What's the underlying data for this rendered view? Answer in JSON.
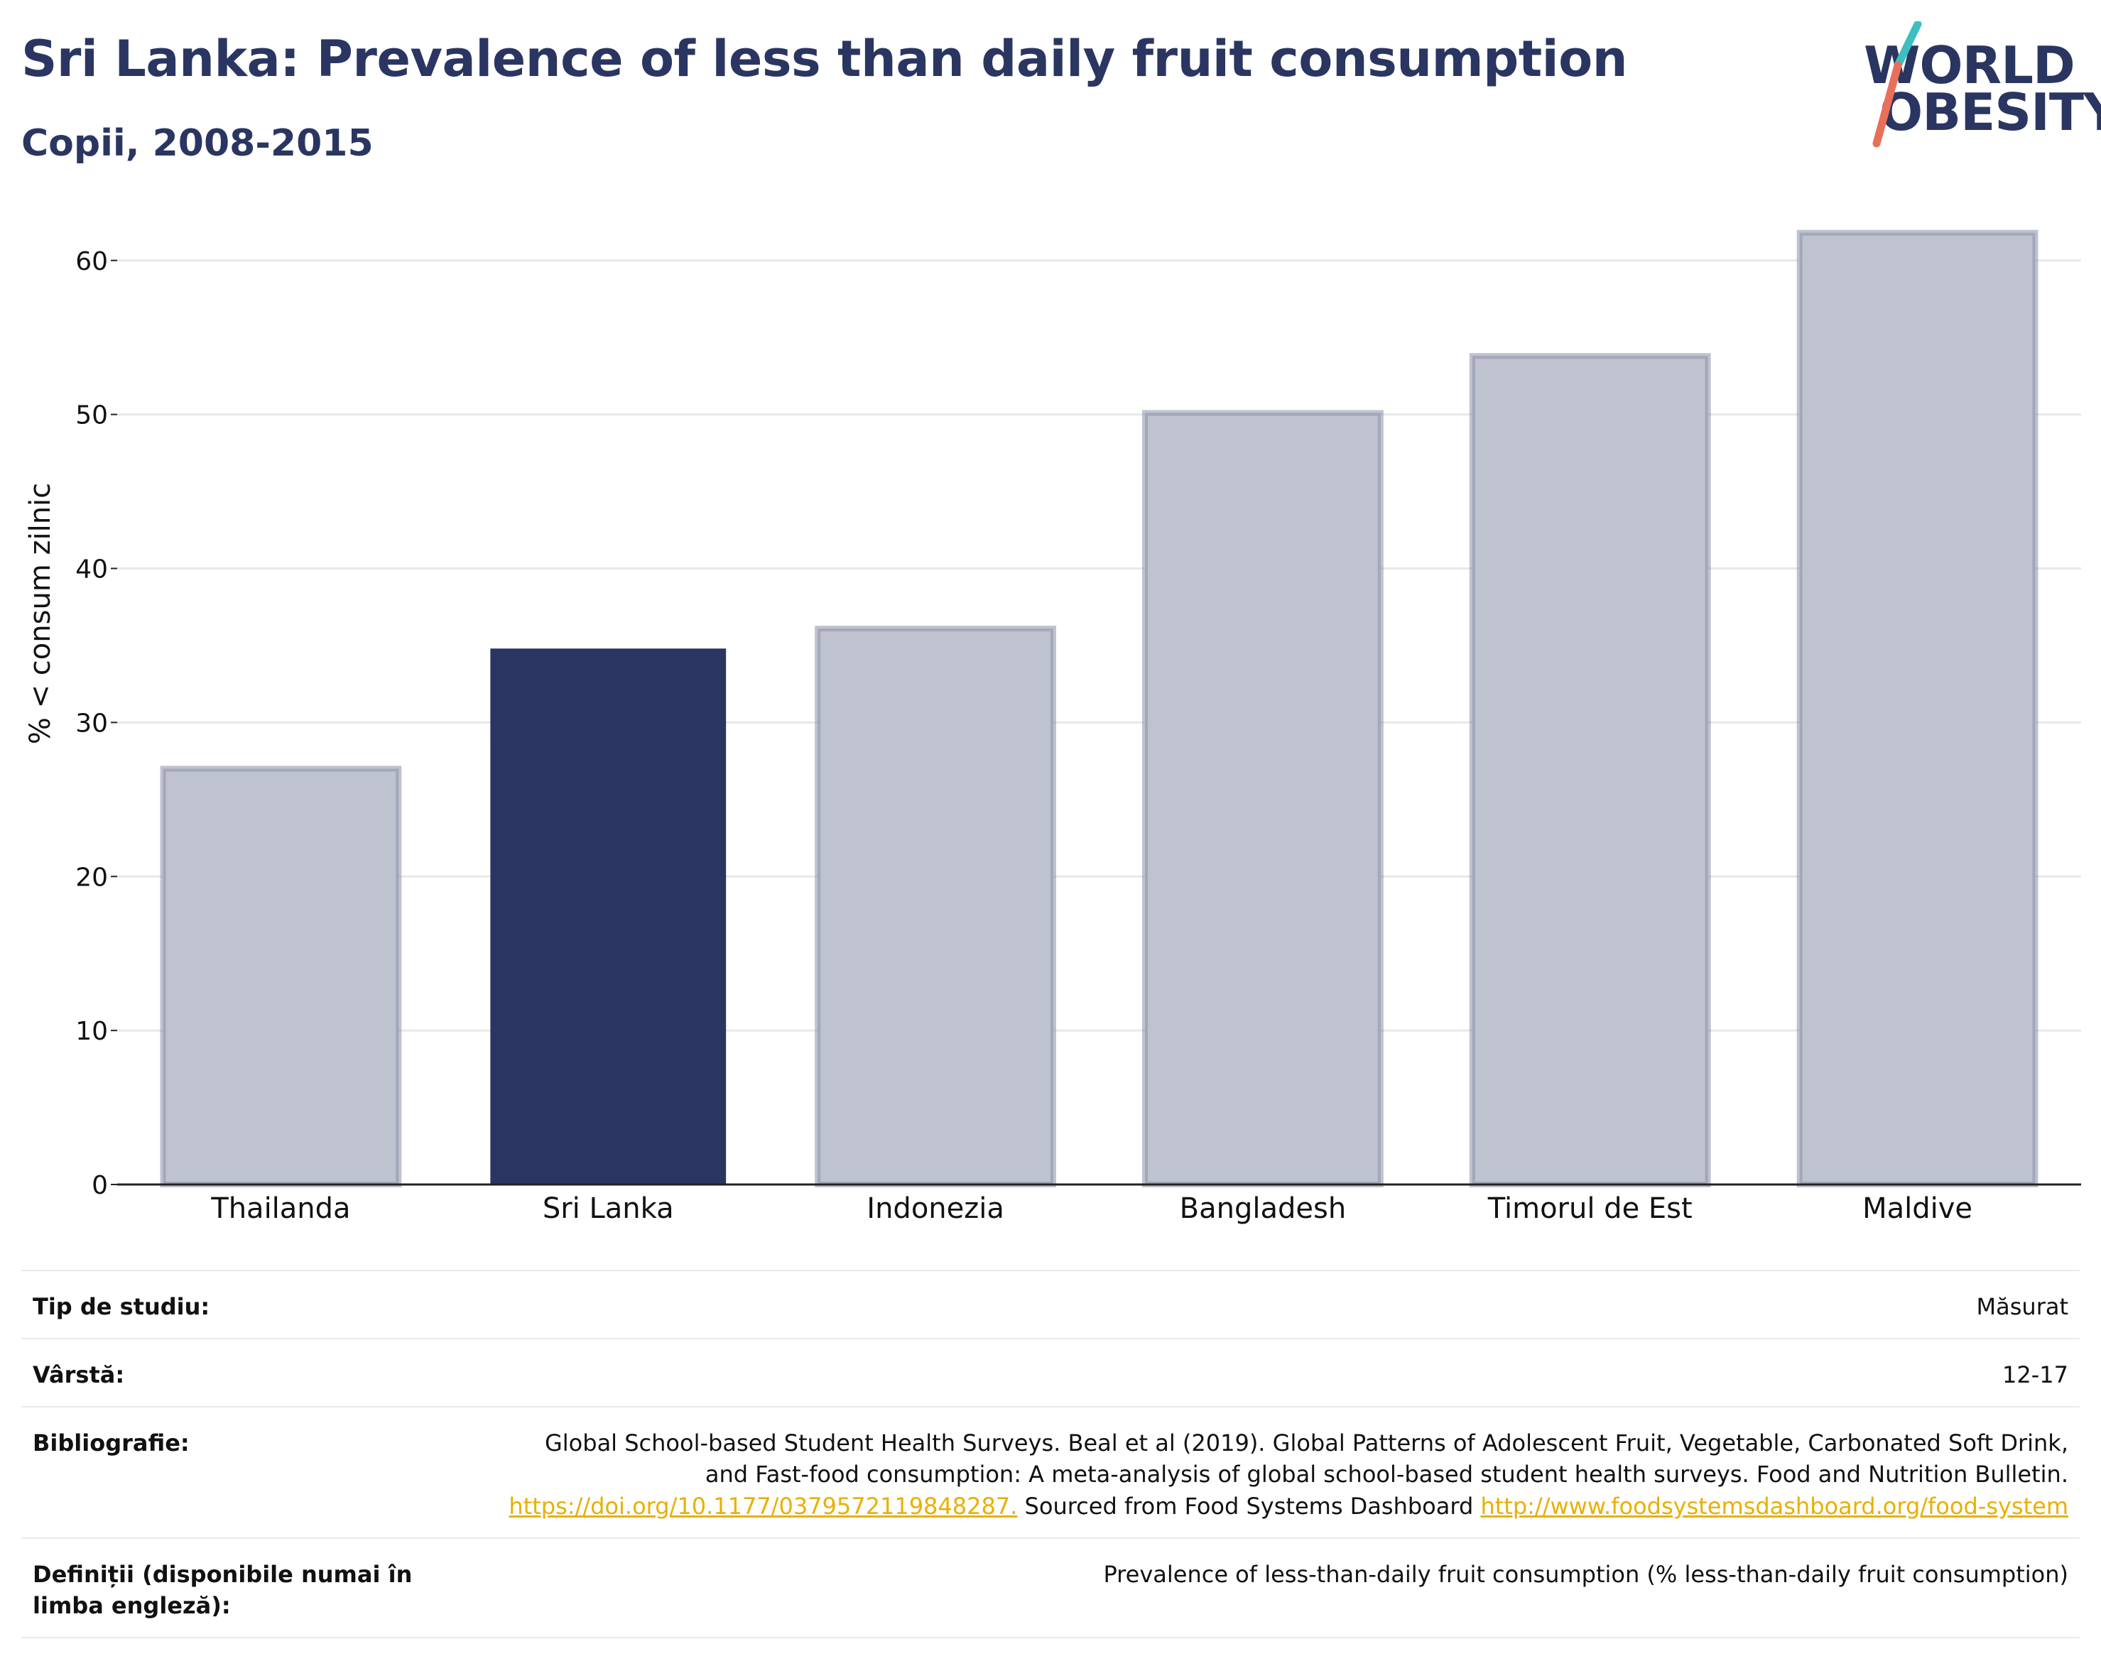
{
  "header": {
    "title": "Sri Lanka: Prevalence of less than daily fruit consumption",
    "subtitle": "Copii, 2008-2015"
  },
  "logo": {
    "line1": "WORLD",
    "line2": "OBESITY",
    "colors": {
      "text": "#2a3661",
      "slash_top": "#3cbfc1",
      "slash_bottom": "#e8705a"
    }
  },
  "colors": {
    "highlight_bar": "#2a3661",
    "other_bar_fill": "#bfc3cf",
    "other_bar_stroke": "#8a90a8",
    "grid": "#e6e8ec",
    "axis": "#222222"
  },
  "chart_data": {
    "type": "bar",
    "categories": [
      "Thailanda",
      "Sri Lanka",
      "Indonezia",
      "Bangladesh",
      "Timorul de Est",
      "Maldive"
    ],
    "values": [
      27,
      34.8,
      36.1,
      50.1,
      53.8,
      61.8
    ],
    "highlight": "Sri Lanka",
    "ylabel": "% < consum zilnic",
    "ylim": [
      0,
      64
    ],
    "yticks": [
      0,
      10,
      20,
      30,
      40,
      50,
      60
    ],
    "grid": true
  },
  "meta": {
    "study_type_label": "Tip de studiu:",
    "study_type_value": "Măsurat",
    "age_label": "Vârstă:",
    "age_value": "12-17",
    "bibliography_label": "Bibliografie:",
    "bibliography_text_1": "Global School-based Student Health Surveys. Beal et al (2019). Global Patterns of Adolescent Fruit, Vegetable, Carbonated Soft Drink, and Fast-food consumption: A meta-analysis of global school-based student health surveys. Food and Nutrition Bulletin.",
    "bibliography_link_1": "https://doi.org/10.1177/0379572119848287.",
    "bibliography_text_2": "Sourced from Food Systems Dashboard",
    "bibliography_link_2": "http://www.foodsystemsdashboard.org/food-system",
    "definitions_label": "Definiții (disponibile numai în limba engleză):",
    "definitions_value": "Prevalence of less-than-daily fruit consumption (% less-than-daily fruit consumption)"
  }
}
